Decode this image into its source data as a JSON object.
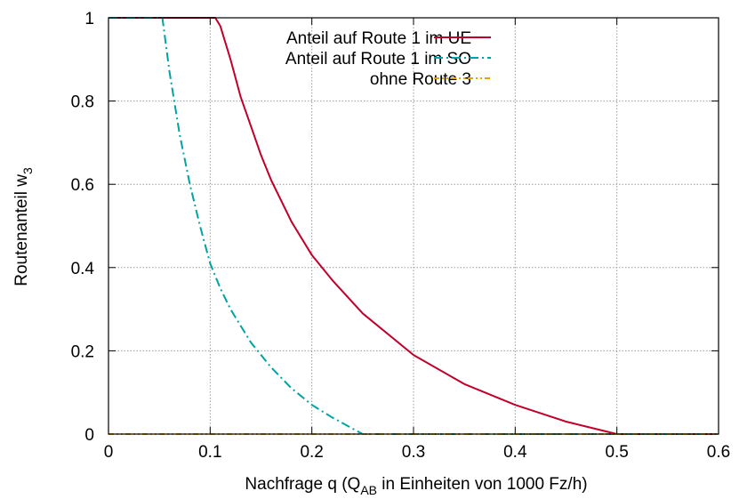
{
  "chart_data": {
    "type": "line",
    "xlabel_main": "Nachfrage q (Q",
    "xlabel_sub": "AB",
    "xlabel_rest": " in Einheiten von 1000 Fz/h)",
    "ylabel_main": "Routenanteil w",
    "ylabel_sub": "3",
    "xlim": [
      0,
      0.6
    ],
    "ylim": [
      0,
      1
    ],
    "x_ticks": [
      0,
      0.1,
      0.2,
      0.3,
      0.4,
      0.5,
      0.6
    ],
    "x_tick_labels": [
      "0",
      "0.1",
      "0.2",
      "0.3",
      "0.4",
      "0.5",
      "0.6"
    ],
    "y_ticks": [
      0,
      0.2,
      0.4,
      0.6,
      0.8,
      1
    ],
    "y_tick_labels": [
      "0",
      "0.2",
      "0.4",
      "0.6",
      "0.8",
      "1"
    ],
    "grid": true,
    "legend_position": "top-right",
    "series": [
      {
        "name": "Anteil auf Route 1 im UE",
        "color": "#c0002b",
        "dash": "solid",
        "x": [
          0,
          0.105,
          0.11,
          0.12,
          0.13,
          0.14,
          0.15,
          0.16,
          0.18,
          0.2,
          0.22,
          0.25,
          0.3,
          0.35,
          0.4,
          0.45,
          0.5,
          0.6
        ],
        "y": [
          1,
          1,
          0.98,
          0.9,
          0.81,
          0.74,
          0.67,
          0.61,
          0.51,
          0.43,
          0.37,
          0.29,
          0.19,
          0.12,
          0.07,
          0.03,
          0,
          0
        ]
      },
      {
        "name": "Anteil auf Route 1 im SO",
        "color": "#00a3a3",
        "dash": "dashdot",
        "x": [
          0,
          0.053,
          0.06,
          0.07,
          0.08,
          0.09,
          0.1,
          0.11,
          0.12,
          0.14,
          0.16,
          0.18,
          0.2,
          0.22,
          0.25,
          0.3,
          0.6
        ],
        "y": [
          1,
          1,
          0.87,
          0.72,
          0.6,
          0.5,
          0.41,
          0.35,
          0.3,
          0.22,
          0.16,
          0.11,
          0.07,
          0.04,
          0,
          0,
          0
        ]
      },
      {
        "name": "ohne Route 3",
        "color": "#e6a400",
        "dash": "dashdotdot",
        "x": [
          0,
          0.6
        ],
        "y": [
          0,
          0
        ]
      }
    ]
  }
}
